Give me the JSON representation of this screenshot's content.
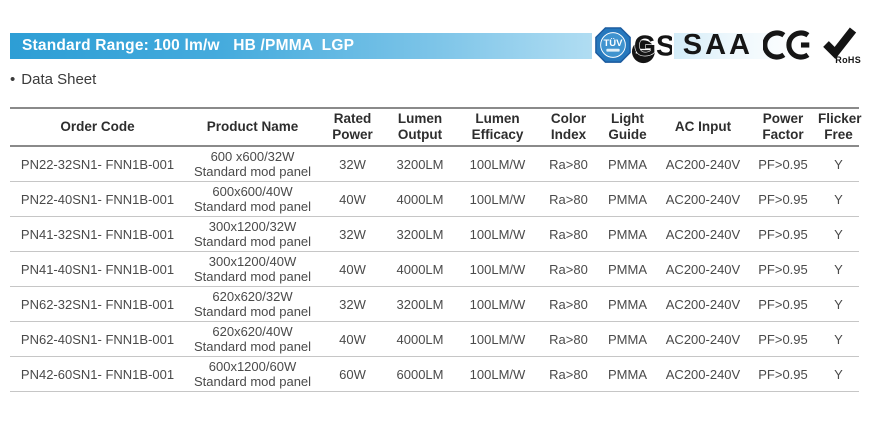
{
  "banner": {
    "title": "Standard Range: 100 lm/w   HB /PMMA  LGP",
    "accent_color": "#2d9ed5"
  },
  "certifications": {
    "tuv_label": "TÜV",
    "gs_label": "GS",
    "saa_label": "SAA",
    "rohs_label": "RoHS"
  },
  "section": {
    "bullet": "•",
    "title": "Data Sheet"
  },
  "table": {
    "headers": [
      "Order Code",
      "Product Name",
      "Rated\nPower",
      "Lumen\nOutput",
      "Lumen\nEfficacy",
      "Color\nIndex",
      "Light\nGuide",
      "AC Input",
      "Power\nFactor",
      "Flicker\nFree"
    ],
    "rows": [
      {
        "order_code": "PN22-32SN1- FNN1B-001",
        "product_name": "600 x600/32W\nStandard mod panel",
        "rated_power": "32W",
        "lumen_output": "3200LM",
        "lumen_efficacy": "100LM/W",
        "color_index": "Ra>80",
        "light_guide": "PMMA",
        "ac_input": "AC200-240V",
        "power_factor": "PF>0.95",
        "flicker_free": "Y"
      },
      {
        "order_code": "PN22-40SN1- FNN1B-001",
        "product_name": "600x600/40W\nStandard mod panel",
        "rated_power": "40W",
        "lumen_output": "4000LM",
        "lumen_efficacy": "100LM/W",
        "color_index": "Ra>80",
        "light_guide": "PMMA",
        "ac_input": "AC200-240V",
        "power_factor": "PF>0.95",
        "flicker_free": "Y"
      },
      {
        "order_code": "PN41-32SN1- FNN1B-001",
        "product_name": "300x1200/32W\nStandard mod panel",
        "rated_power": "32W",
        "lumen_output": "3200LM",
        "lumen_efficacy": "100LM/W",
        "color_index": "Ra>80",
        "light_guide": "PMMA",
        "ac_input": "AC200-240V",
        "power_factor": "PF>0.95",
        "flicker_free": "Y"
      },
      {
        "order_code": "PN41-40SN1- FNN1B-001",
        "product_name": "300x1200/40W\nStandard mod panel",
        "rated_power": "40W",
        "lumen_output": "4000LM",
        "lumen_efficacy": "100LM/W",
        "color_index": "Ra>80",
        "light_guide": "PMMA",
        "ac_input": "AC200-240V",
        "power_factor": "PF>0.95",
        "flicker_free": "Y"
      },
      {
        "order_code": "PN62-32SN1- FNN1B-001",
        "product_name": "620x620/32W\nStandard mod panel",
        "rated_power": "32W",
        "lumen_output": "3200LM",
        "lumen_efficacy": "100LM/W",
        "color_index": "Ra>80",
        "light_guide": "PMMA",
        "ac_input": "AC200-240V",
        "power_factor": "PF>0.95",
        "flicker_free": "Y"
      },
      {
        "order_code": "PN62-40SN1- FNN1B-001",
        "product_name": "620x620/40W\nStandard mod panel",
        "rated_power": "40W",
        "lumen_output": "4000LM",
        "lumen_efficacy": "100LM/W",
        "color_index": "Ra>80",
        "light_guide": "PMMA",
        "ac_input": "AC200-240V",
        "power_factor": "PF>0.95",
        "flicker_free": "Y"
      },
      {
        "order_code": "PN42-60SN1- FNN1B-001",
        "product_name": "600x1200/60W\nStandard mod panel",
        "rated_power": "60W",
        "lumen_output": "6000LM",
        "lumen_efficacy": "100LM/W",
        "color_index": "Ra>80",
        "light_guide": "PMMA",
        "ac_input": "AC200-240V",
        "power_factor": "PF>0.95",
        "flicker_free": "Y"
      }
    ]
  }
}
